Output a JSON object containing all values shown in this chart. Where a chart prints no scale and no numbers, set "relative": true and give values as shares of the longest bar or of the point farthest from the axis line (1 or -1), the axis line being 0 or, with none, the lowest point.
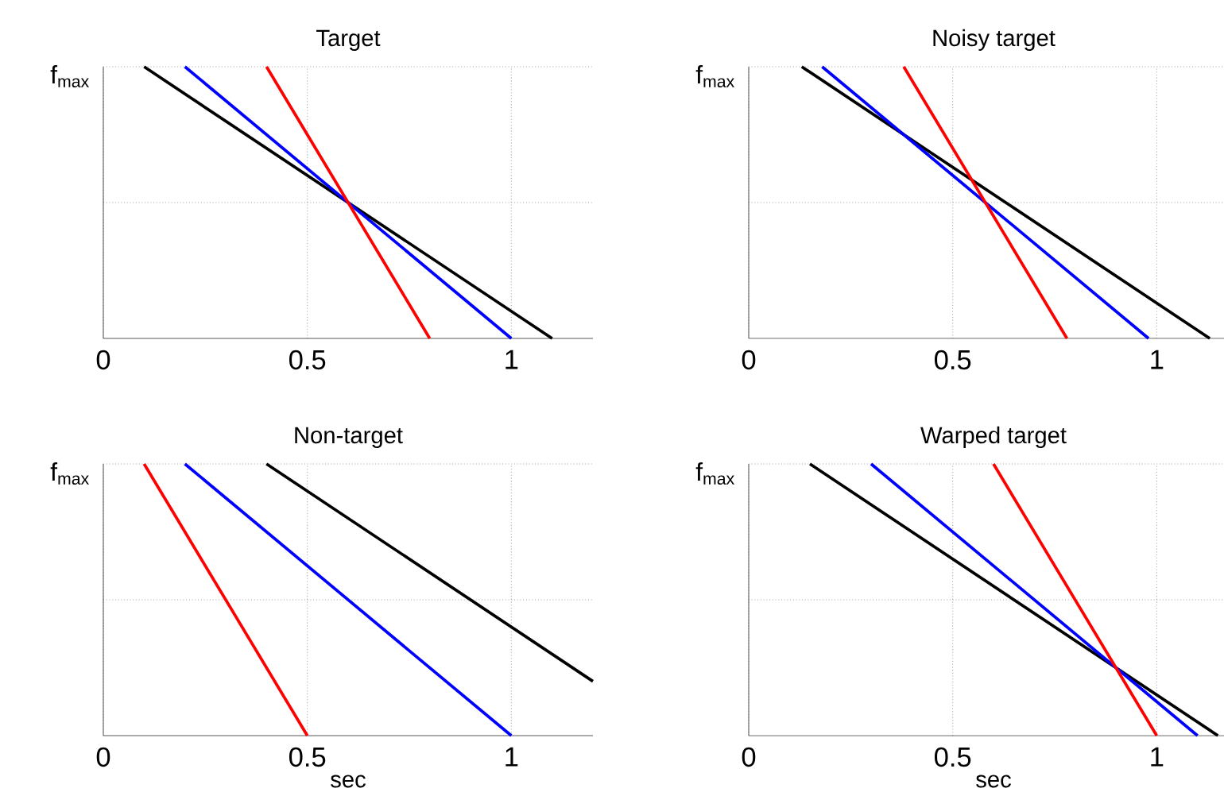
{
  "chart_data": [
    {
      "type": "line",
      "title": "Target",
      "annotations": [
        "f$_{max}$"
      ],
      "relative": true,
      "xlim": [
        0,
        1.2
      ],
      "xticks": [
        0,
        0.5,
        1
      ],
      "grid": true,
      "line_style": "solid",
      "series": [
        {
          "color": "#000000",
          "x": [
            0.1,
            1.1
          ],
          "values": [
            1,
            0
          ]
        },
        {
          "color": "#0000ff",
          "x": [
            0.2,
            1.0
          ],
          "values": [
            1,
            0
          ]
        },
        {
          "color": "#ff0000",
          "x": [
            0.4,
            0.8
          ],
          "values": [
            1,
            0
          ]
        }
      ]
    },
    {
      "type": "line",
      "title": "Noisy target",
      "annotations": [
        "f$_{max}$"
      ],
      "relative": true,
      "xlim": [
        0,
        1.2
      ],
      "xticks": [
        0,
        0.5,
        1
      ],
      "grid": true,
      "line_style": "solid",
      "series": [
        {
          "color": "#000000",
          "x": [
            0.13,
            1.13
          ],
          "values": [
            1,
            0
          ]
        },
        {
          "color": "#0000ff",
          "x": [
            0.18,
            0.58,
            0.98
          ],
          "values": [
            1,
            0.5,
            0
          ]
        },
        {
          "color": "#ff0000",
          "x": [
            0.38,
            0.78
          ],
          "values": [
            1,
            0
          ]
        }
      ]
    },
    {
      "type": "line",
      "title": "Non-target",
      "xlabel": "sec",
      "annotations": [
        "f$_{max}$"
      ],
      "relative": true,
      "xlim": [
        0,
        1.2
      ],
      "xticks": [
        0,
        0.5,
        1
      ],
      "grid": true,
      "line_style": "solid",
      "series": [
        {
          "color": "#000000",
          "x": [
            0.4,
            1.2
          ],
          "values": [
            1,
            0.2
          ]
        },
        {
          "color": "#0000ff",
          "x": [
            0.2,
            1.0
          ],
          "values": [
            1,
            0
          ]
        },
        {
          "color": "#ff0000",
          "x": [
            0.1,
            0.5
          ],
          "values": [
            1,
            0
          ]
        }
      ]
    },
    {
      "type": "line",
      "title": "Warped target",
      "xlabel": "sec",
      "annotations": [
        "f$_{max}$"
      ],
      "relative": true,
      "xlim": [
        0,
        1.2
      ],
      "xticks": [
        0,
        0.5,
        1
      ],
      "grid": true,
      "line_style": "solid",
      "series": [
        {
          "color": "#000000",
          "x": [
            0.15,
            1.15
          ],
          "values": [
            1,
            0
          ]
        },
        {
          "color": "#0000ff",
          "x": [
            0.3,
            1.1
          ],
          "values": [
            1,
            0
          ]
        },
        {
          "color": "#ff0000",
          "x": [
            0.6,
            1.0
          ],
          "values": [
            1,
            0
          ]
        }
      ]
    }
  ]
}
